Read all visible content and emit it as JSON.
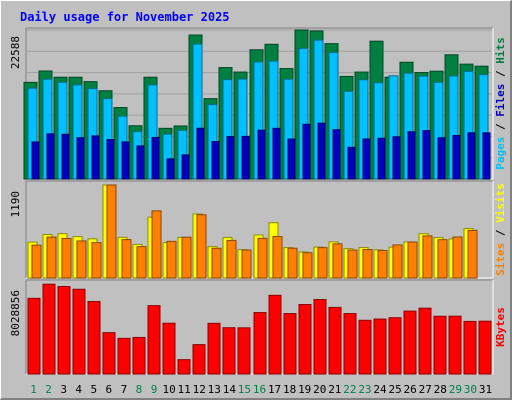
{
  "chart_data": [
    {
      "type": "bar",
      "title": "Daily usage for November 2025",
      "ymax_label": "22588",
      "ylim": [
        0,
        22588
      ],
      "legend": [
        "Pages",
        "Files",
        "Hits"
      ],
      "categories": [
        "1",
        "2",
        "3",
        "4",
        "5",
        "6",
        "7",
        "8",
        "9",
        "10",
        "11",
        "12",
        "13",
        "14",
        "15",
        "16",
        "17",
        "18",
        "19",
        "20",
        "21",
        "22",
        "23",
        "24",
        "25",
        "26",
        "27",
        "28",
        "29",
        "30",
        "31"
      ],
      "series": [
        {
          "name": "Hits",
          "color": "#008040",
          "values": [
            14650,
            16370,
            15430,
            15430,
            14760,
            13380,
            10830,
            8070,
            15430,
            7680,
            8040,
            21830,
            12180,
            16890,
            16210,
            19590,
            20420,
            16740,
            22590,
            22440,
            20520,
            15550,
            16210,
            20890,
            15430,
            17700,
            16140,
            16340,
            18830,
            17410,
            17100
          ]
        },
        {
          "name": "Files",
          "color": "#00c0ff",
          "values": [
            13760,
            15140,
            14650,
            14260,
            13700,
            12180,
            9510,
            7180,
            14270,
            6790,
            7360,
            20450,
            11280,
            15060,
            15150,
            17750,
            17870,
            15130,
            19790,
            21040,
            19160,
            13290,
            15040,
            14590,
            15640,
            16040,
            15600,
            14650,
            15610,
            16320,
            15820
          ]
        },
        {
          "name": "Pages",
          "color": "#0000c0",
          "values": [
            5620,
            6850,
            6780,
            6260,
            6530,
            5980,
            5620,
            5020,
            6300,
            3050,
            3660,
            7700,
            5680,
            6430,
            6460,
            7400,
            7680,
            6060,
            8290,
            8460,
            7470,
            4810,
            6070,
            6170,
            6400,
            7160,
            7340,
            6250,
            6600,
            7010,
            7000
          ]
        }
      ]
    },
    {
      "type": "bar",
      "ymax_label": "1190",
      "ylim": [
        0,
        1190
      ],
      "legend": [
        "Sites",
        "Visits"
      ],
      "categories": [
        "1",
        "2",
        "3",
        "4",
        "5",
        "6",
        "7",
        "8",
        "9",
        "10",
        "11",
        "12",
        "13",
        "14",
        "15",
        "16",
        "17",
        "18",
        "19",
        "20",
        "21",
        "22",
        "23",
        "24",
        "25",
        "26",
        "27",
        "28",
        "29",
        "30",
        "31"
      ],
      "series": [
        {
          "name": "Visits",
          "color": "#ffff00",
          "values": [
            459,
            556,
            567,
            530,
            501,
            1190,
            520,
            431,
            778,
            453,
            520,
            819,
            401,
            519,
            363,
            550,
            707,
            389,
            333,
            396,
            462,
            375,
            390,
            360,
            395,
            461,
            567,
            518,
            500,
            632,
            0
          ]
        },
        {
          "name": "Sites",
          "color": "#ff8000",
          "values": [
            420,
            523,
            505,
            474,
            453,
            1190,
            491,
            401,
            859,
            469,
            522,
            809,
            380,
            481,
            358,
            507,
            531,
            381,
            323,
            388,
            437,
            357,
            364,
            351,
            423,
            460,
            539,
            490,
            525,
            609,
            0
          ]
        }
      ]
    },
    {
      "type": "bar",
      "ymax_label": "8028856",
      "ylim": [
        0,
        8028856
      ],
      "legend": [
        "KBytes"
      ],
      "categories": [
        "1",
        "2",
        "3",
        "4",
        "5",
        "6",
        "7",
        "8",
        "9",
        "10",
        "11",
        "12",
        "13",
        "14",
        "15",
        "16",
        "17",
        "18",
        "19",
        "20",
        "21",
        "22",
        "23",
        "24",
        "25",
        "26",
        "27",
        "28",
        "29",
        "30",
        "31"
      ],
      "series": [
        {
          "name": "KBytes",
          "color": "#ff0000",
          "values": [
            6750000,
            8010000,
            7800000,
            7560000,
            6470000,
            3690000,
            3180000,
            3260000,
            6100000,
            4530000,
            1280000,
            2620000,
            4520000,
            4130000,
            4120000,
            5480000,
            7020000,
            5390000,
            6200000,
            6640000,
            5940000,
            5390000,
            4790000,
            4900000,
            5020000,
            5610000,
            5870000,
            5150000,
            5160000,
            4690000,
            4710000
          ]
        }
      ]
    }
  ]
}
